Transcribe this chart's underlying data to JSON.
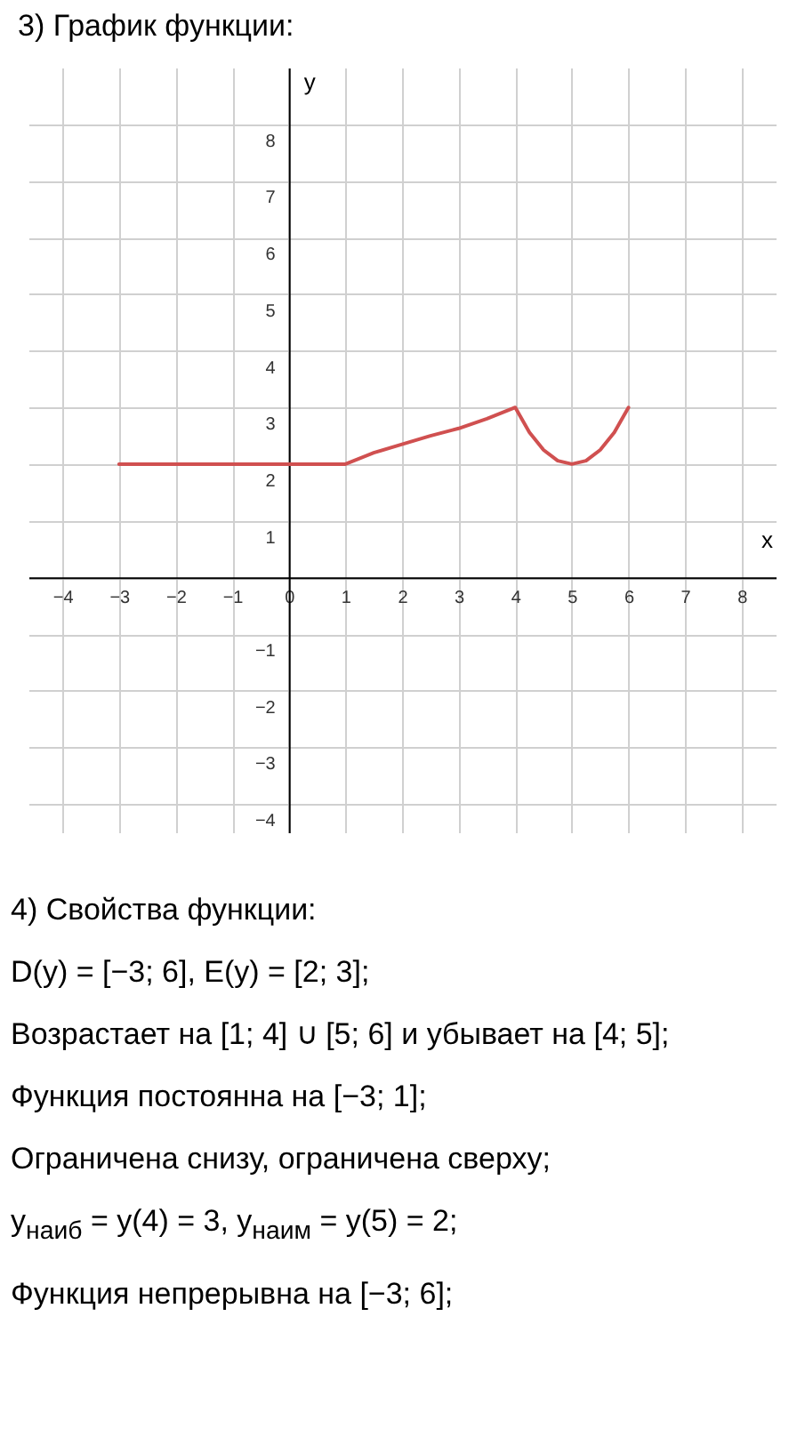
{
  "chart_data": {
    "type": "line",
    "title": "3) График функции:",
    "xlabel": "x",
    "ylabel": "y",
    "x": [
      -3,
      1,
      1.5,
      2,
      2.5,
      3,
      3.5,
      4,
      4.25,
      4.5,
      4.75,
      5,
      5.25,
      5.5,
      5.75,
      6
    ],
    "series": [
      {
        "color": "#d05050",
        "values": [
          2,
          2,
          2.2,
          2.35,
          2.5,
          2.63,
          2.8,
          3,
          2.56,
          2.25,
          2.06,
          2,
          2.06,
          2.25,
          2.56,
          3
        ]
      }
    ],
    "xlim": [
      -4.6,
      8.6
    ],
    "ylim": [
      -4.5,
      9
    ],
    "xticks": [
      -4,
      -3,
      -2,
      -1,
      0,
      1,
      2,
      3,
      4,
      5,
      6,
      7,
      8
    ],
    "yticks": [
      -4,
      -3,
      -2,
      -1,
      {
        "value": 0,
        "label": null
      },
      1,
      2,
      3,
      4,
      5,
      6,
      7,
      8
    ],
    "grid": true,
    "marker": "none",
    "line_style": "solid",
    "annotations": [
      "4) Свойства функции:",
      "D(y) = [−3; 6],  E(y) = [2; 3];",
      "Возрастает на [1; 4] ∪ [5; 6] и убывает на [4; 5];",
      "Функция постоянна на [−3; 1];",
      "Ограничена снизу, ограничена сверху;",
      "y$_{наиб}$ = y(4) = 3,  y$_{наим}$ = y(5) = 2;",
      "Функция непрерывна на [−3; 6];"
    ]
  }
}
